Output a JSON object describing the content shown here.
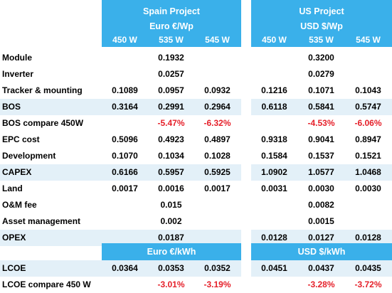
{
  "colors": {
    "header": "#3ab0ea",
    "shaded_row": "#e3f0f8",
    "negative": "#e5202a"
  },
  "spain": {
    "title": "Spain Project",
    "unit": "Euro €/Wp",
    "lcoe_unit": "Euro €/kWh"
  },
  "us": {
    "title": "US Project",
    "unit": "USD $/Wp",
    "lcoe_unit": "USD $/kWh"
  },
  "columns": [
    "450 W",
    "535 W",
    "545 W"
  ],
  "rows": [
    {
      "label": "Module",
      "spain": [
        "",
        "0.1932",
        ""
      ],
      "us": [
        "",
        "0.3200",
        ""
      ]
    },
    {
      "label": "Inverter",
      "spain": [
        "",
        "0.0257",
        ""
      ],
      "us": [
        "",
        "0.0279",
        ""
      ]
    },
    {
      "label": "Tracker & mounting",
      "spain": [
        "0.1089",
        "0.0957",
        "0.0932"
      ],
      "us": [
        "0.1216",
        "0.1071",
        "0.1043"
      ]
    },
    {
      "label": "BOS",
      "spain": [
        "0.3164",
        "0.2991",
        "0.2964"
      ],
      "us": [
        "0.6118",
        "0.5841",
        "0.5747"
      ]
    },
    {
      "label": "BOS compare 450W",
      "spain": [
        "",
        "-5.47%",
        "-6.32%"
      ],
      "us": [
        "",
        "-4.53%",
        "-6.06%"
      ]
    },
    {
      "label": "EPC cost",
      "spain": [
        "0.5096",
        "0.4923",
        "0.4897"
      ],
      "us": [
        "0.9318",
        "0.9041",
        "0.8947"
      ]
    },
    {
      "label": "Development",
      "spain": [
        "0.1070",
        "0.1034",
        "0.1028"
      ],
      "us": [
        "0.1584",
        "0.1537",
        "0.1521"
      ]
    },
    {
      "label": "CAPEX",
      "spain": [
        "0.6166",
        "0.5957",
        "0.5925"
      ],
      "us": [
        "1.0902",
        "1.0577",
        "1.0468"
      ]
    },
    {
      "label": "Land",
      "spain": [
        "0.0017",
        "0.0016",
        "0.0017"
      ],
      "us": [
        "0.0031",
        "0.0030",
        "0.0030"
      ]
    },
    {
      "label": "O&M fee",
      "spain": [
        "",
        "0.015",
        ""
      ],
      "us": [
        "",
        "0.0082",
        ""
      ]
    },
    {
      "label": "Asset management",
      "spain": [
        "",
        "0.002",
        ""
      ],
      "us": [
        "",
        "0.0015",
        ""
      ]
    },
    {
      "label": "OPEX",
      "spain": [
        "",
        "0.0187",
        ""
      ],
      "us": [
        "0.0128",
        "0.0127",
        "0.0128"
      ]
    }
  ],
  "lcoe_rows": [
    {
      "label": "LCOE",
      "spain": [
        "0.0364",
        "0.0353",
        "0.0352"
      ],
      "us": [
        "0.0451",
        "0.0437",
        "0.0435"
      ]
    },
    {
      "label": "LCOE compare 450 W",
      "spain": [
        "",
        "-3.01%",
        "-3.19%"
      ],
      "us": [
        "",
        "-3.28%",
        "-3.72%"
      ]
    }
  ]
}
